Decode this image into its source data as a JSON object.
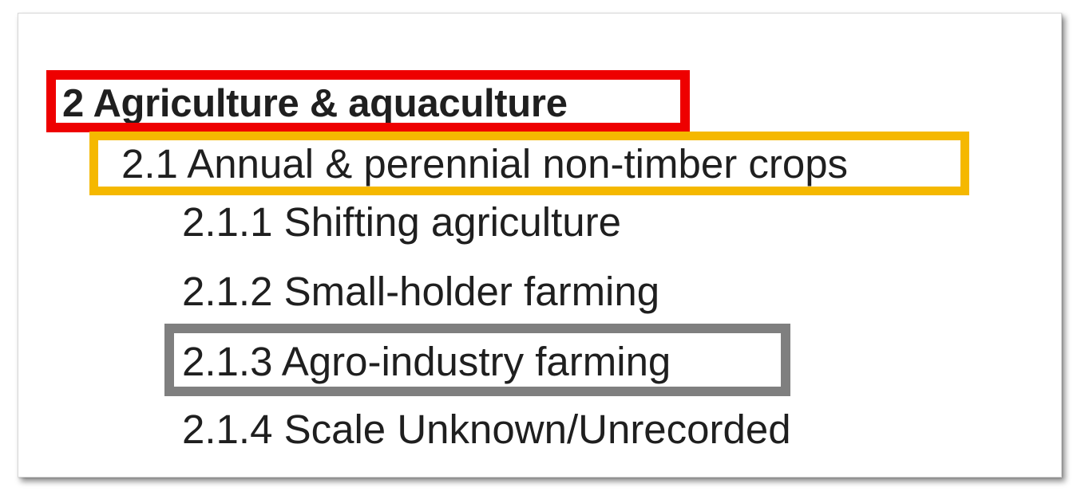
{
  "outline": {
    "level1": "2 Agriculture & aquaculture",
    "level2": "2.1 Annual & perennial non-timber crops",
    "level3": [
      "2.1.1 Shifting agriculture",
      "2.1.2 Small-holder farming",
      "2.1.3 Agro-industry farming",
      "2.1.4 Scale Unknown/Unrecorded"
    ]
  },
  "highlights": {
    "level1_color": "#ee0000",
    "level2_color": "#f5b800",
    "item3_color": "#7f7f7f"
  }
}
